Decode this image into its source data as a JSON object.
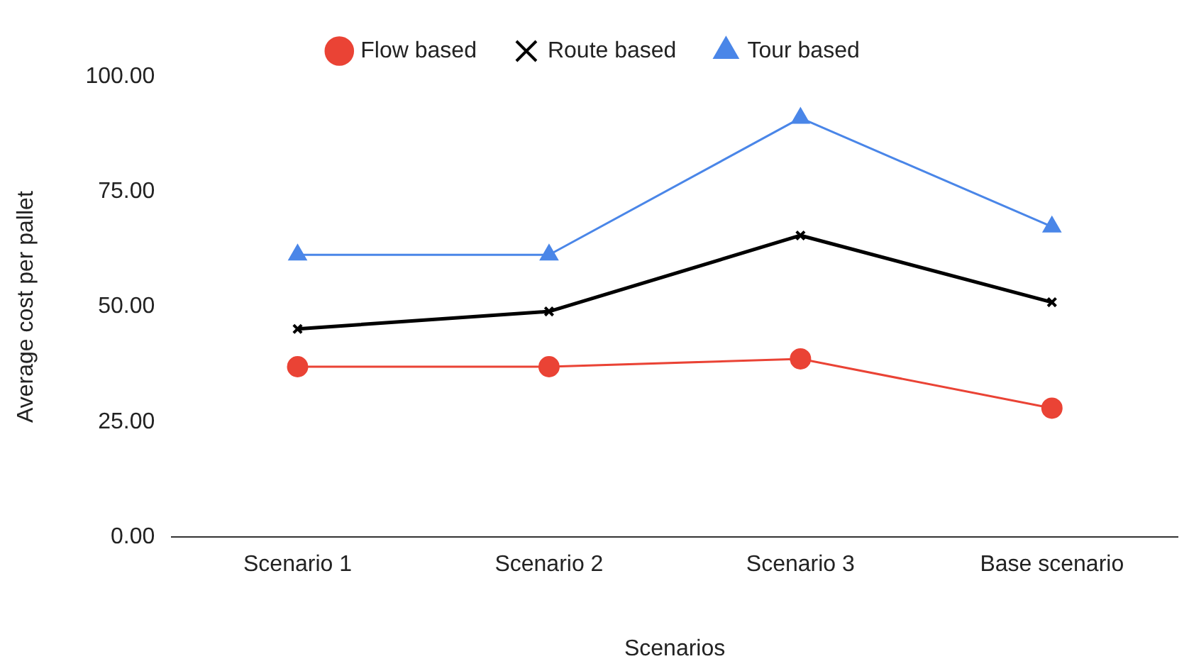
{
  "chart_data": {
    "type": "line",
    "xlabel": "Scenarios",
    "ylabel": "Average cost per pallet",
    "categories": [
      "Scenario 1",
      "Scenario 2",
      "Scenario 3",
      "Base scenario"
    ],
    "series": [
      {
        "name": "Flow based",
        "color": "#ea4335",
        "marker": "circle",
        "values": [
          37,
          37,
          38.7,
          28
        ]
      },
      {
        "name": "Route based",
        "color": "#000000",
        "marker": "cross",
        "values": [
          45.2,
          49,
          65.5,
          51
        ]
      },
      {
        "name": "Tour based",
        "color": "#4a86e8",
        "marker": "triangle",
        "values": [
          61.3,
          61.3,
          91,
          67.4
        ]
      }
    ],
    "ylim": [
      0,
      100
    ],
    "yticks": [
      {
        "value": 0,
        "label": "0.00"
      },
      {
        "value": 25,
        "label": "25.00"
      },
      {
        "value": 50,
        "label": "50.00"
      },
      {
        "value": 75,
        "label": "75.00"
      },
      {
        "value": 100,
        "label": "100.00"
      }
    ],
    "grid": false,
    "legend": "top"
  }
}
